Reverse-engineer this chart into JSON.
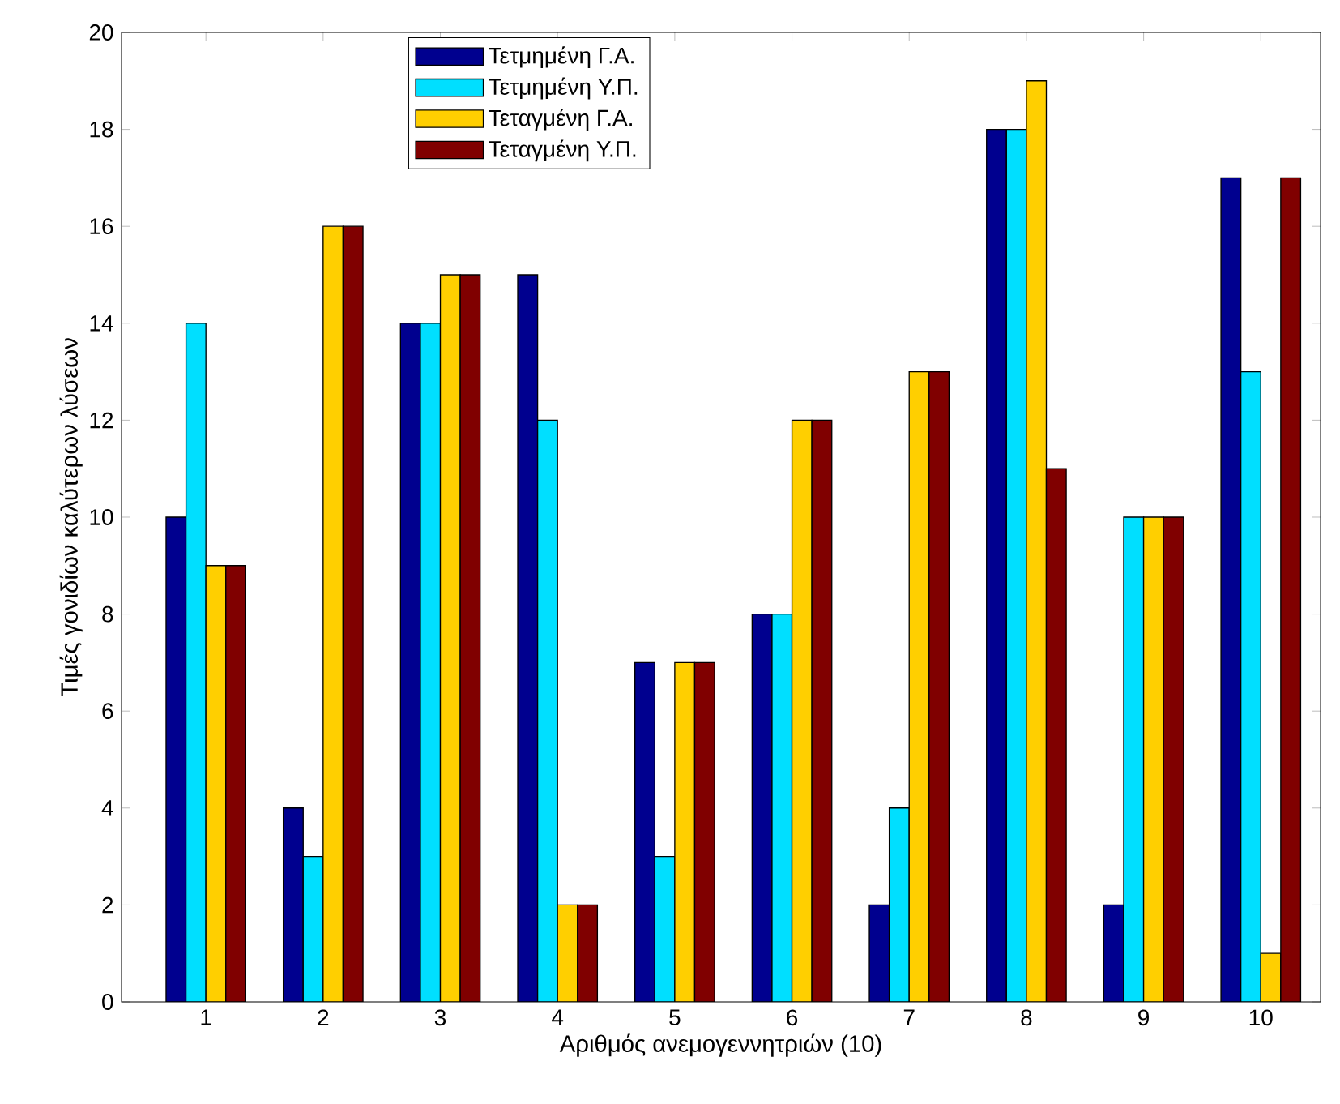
{
  "chart_data": {
    "type": "bar",
    "xlabel": "Αριθμός ανεμογεννητριών (10)",
    "ylabel": "Τιμές γονιδίων καλύτερων λύσεων",
    "categories": [
      "1",
      "2",
      "3",
      "4",
      "5",
      "6",
      "7",
      "8",
      "9",
      "10"
    ],
    "series": [
      {
        "name": "Τετμημένη Γ.Α.",
        "color": "#00008f",
        "values": [
          10,
          4,
          14,
          15,
          7,
          8,
          2,
          18,
          2,
          17
        ]
      },
      {
        "name": "Τετμημένη Υ.Π.",
        "color": "#00dfff",
        "values": [
          14,
          3,
          14,
          12,
          3,
          8,
          4,
          18,
          10,
          13
        ]
      },
      {
        "name": "Τεταγμένη Γ.Α.",
        "color": "#ffcf00",
        "values": [
          9,
          16,
          15,
          2,
          7,
          12,
          13,
          19,
          10,
          1
        ]
      },
      {
        "name": "Τεταγμένη Υ.Π.",
        "color": "#800000",
        "values": [
          9,
          16,
          15,
          2,
          7,
          12,
          13,
          11,
          10,
          17
        ]
      }
    ],
    "ylim": [
      0,
      20
    ],
    "yticks": [
      0,
      2,
      4,
      6,
      8,
      10,
      12,
      14,
      16,
      18,
      20
    ],
    "legend": "top",
    "grid": false
  }
}
